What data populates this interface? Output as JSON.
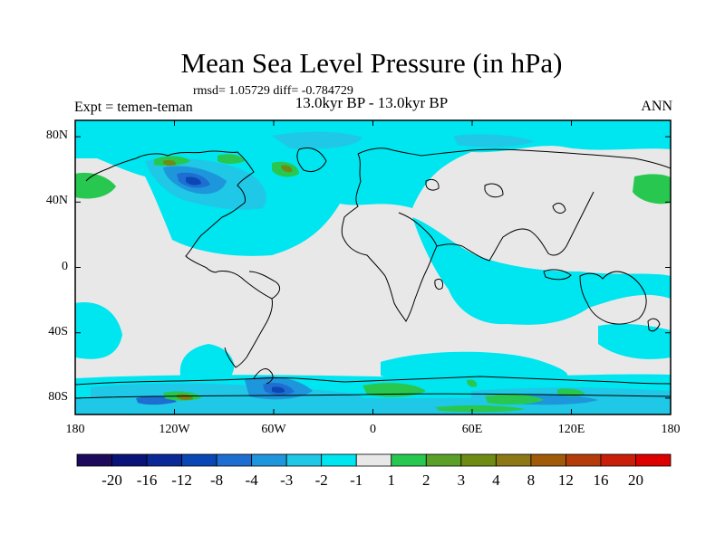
{
  "header": {
    "title": "Mean Sea Level Pressure (in hPa)",
    "stats": "rmsd= 1.05729 diff= -0.784729",
    "subtitle": "13.0kyr BP - 13.0kyr BP",
    "left_label": "Expt = temen-teman",
    "right_label": "ANN"
  },
  "map": {
    "projection": "cylindrical equidistant",
    "lon_range": [
      -180,
      180
    ],
    "lat_range": [
      -90,
      90
    ],
    "lat_ticks": [
      {
        "value": 80,
        "label": "80N"
      },
      {
        "value": 40,
        "label": "40N"
      },
      {
        "value": 0,
        "label": "0"
      },
      {
        "value": -40,
        "label": "40S"
      },
      {
        "value": -80,
        "label": "80S"
      }
    ],
    "lon_ticks": [
      {
        "value": -180,
        "label": "180"
      },
      {
        "value": -120,
        "label": "120W"
      },
      {
        "value": -60,
        "label": "60W"
      },
      {
        "value": 0,
        "label": "0"
      },
      {
        "value": 60,
        "label": "60E"
      },
      {
        "value": 120,
        "label": "120E"
      },
      {
        "value": 180,
        "label": "180"
      }
    ],
    "background_color": "#e8e8e8"
  },
  "colorbar": {
    "levels": [
      "-20",
      "-16",
      "-12",
      "-8",
      "-4",
      "-3",
      "-2",
      "-1",
      "1",
      "2",
      "3",
      "4",
      "8",
      "12",
      "16",
      "20"
    ],
    "colors": [
      "#1e0a5a",
      "#0a1478",
      "#0a2896",
      "#0a46b4",
      "#1e6ed2",
      "#1e96dc",
      "#1ec8e6",
      "#00e6f0",
      "#e8e8e8",
      "#28c850",
      "#5aa028",
      "#6e8c14",
      "#8c7814",
      "#a05a0a",
      "#b43c0a",
      "#c81e0a",
      "#dc0000"
    ]
  }
}
